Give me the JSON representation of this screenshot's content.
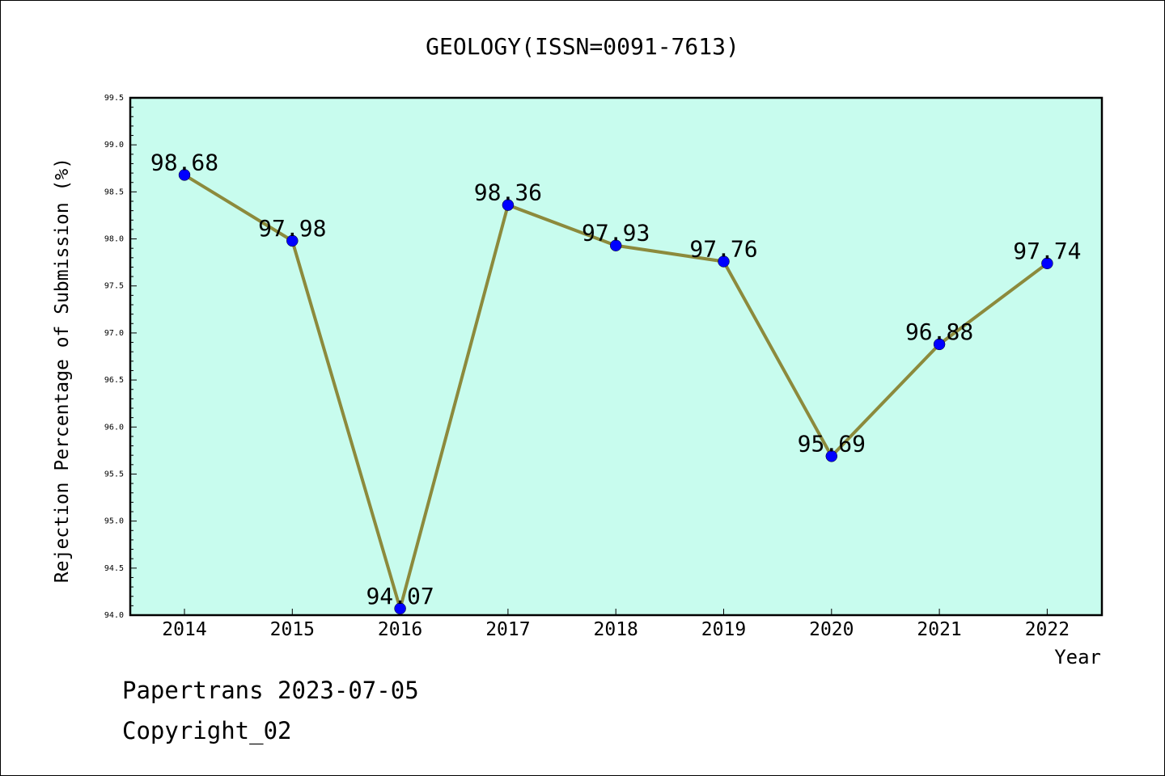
{
  "chart_data": {
    "type": "line",
    "title": "GEOLOGY(ISSN=0091-7613)",
    "xlabel": "Year",
    "ylabel": "Rejection Percentage of Submission (%)",
    "categories": [
      "2014",
      "2015",
      "2016",
      "2017",
      "2018",
      "2019",
      "2020",
      "2021",
      "2022"
    ],
    "series": [
      {
        "values": [
          98.68,
          97.98,
          94.07,
          98.36,
          97.93,
          97.76,
          95.69,
          96.88,
          97.74
        ]
      }
    ],
    "data_labels": [
      "98.68",
      "97.98",
      "94.07",
      "98.36",
      "97.93",
      "97.76",
      "95.69",
      "96.88",
      "97.74"
    ],
    "ylim": [
      94.0,
      99.5
    ],
    "yticks": [
      "94.0",
      "94.5",
      "95.0",
      "95.5",
      "96.0",
      "96.5",
      "97.0",
      "97.5",
      "98.0",
      "98.5",
      "99.0",
      "99.5"
    ],
    "grid": false,
    "legend": "none",
    "colors": {
      "plot_background": "#c8fcee",
      "line": "#8c8a3c",
      "marker": "#0000ff"
    }
  },
  "footer": {
    "line1": "Papertrans 2023-07-05",
    "line2": "Copyright_02"
  }
}
